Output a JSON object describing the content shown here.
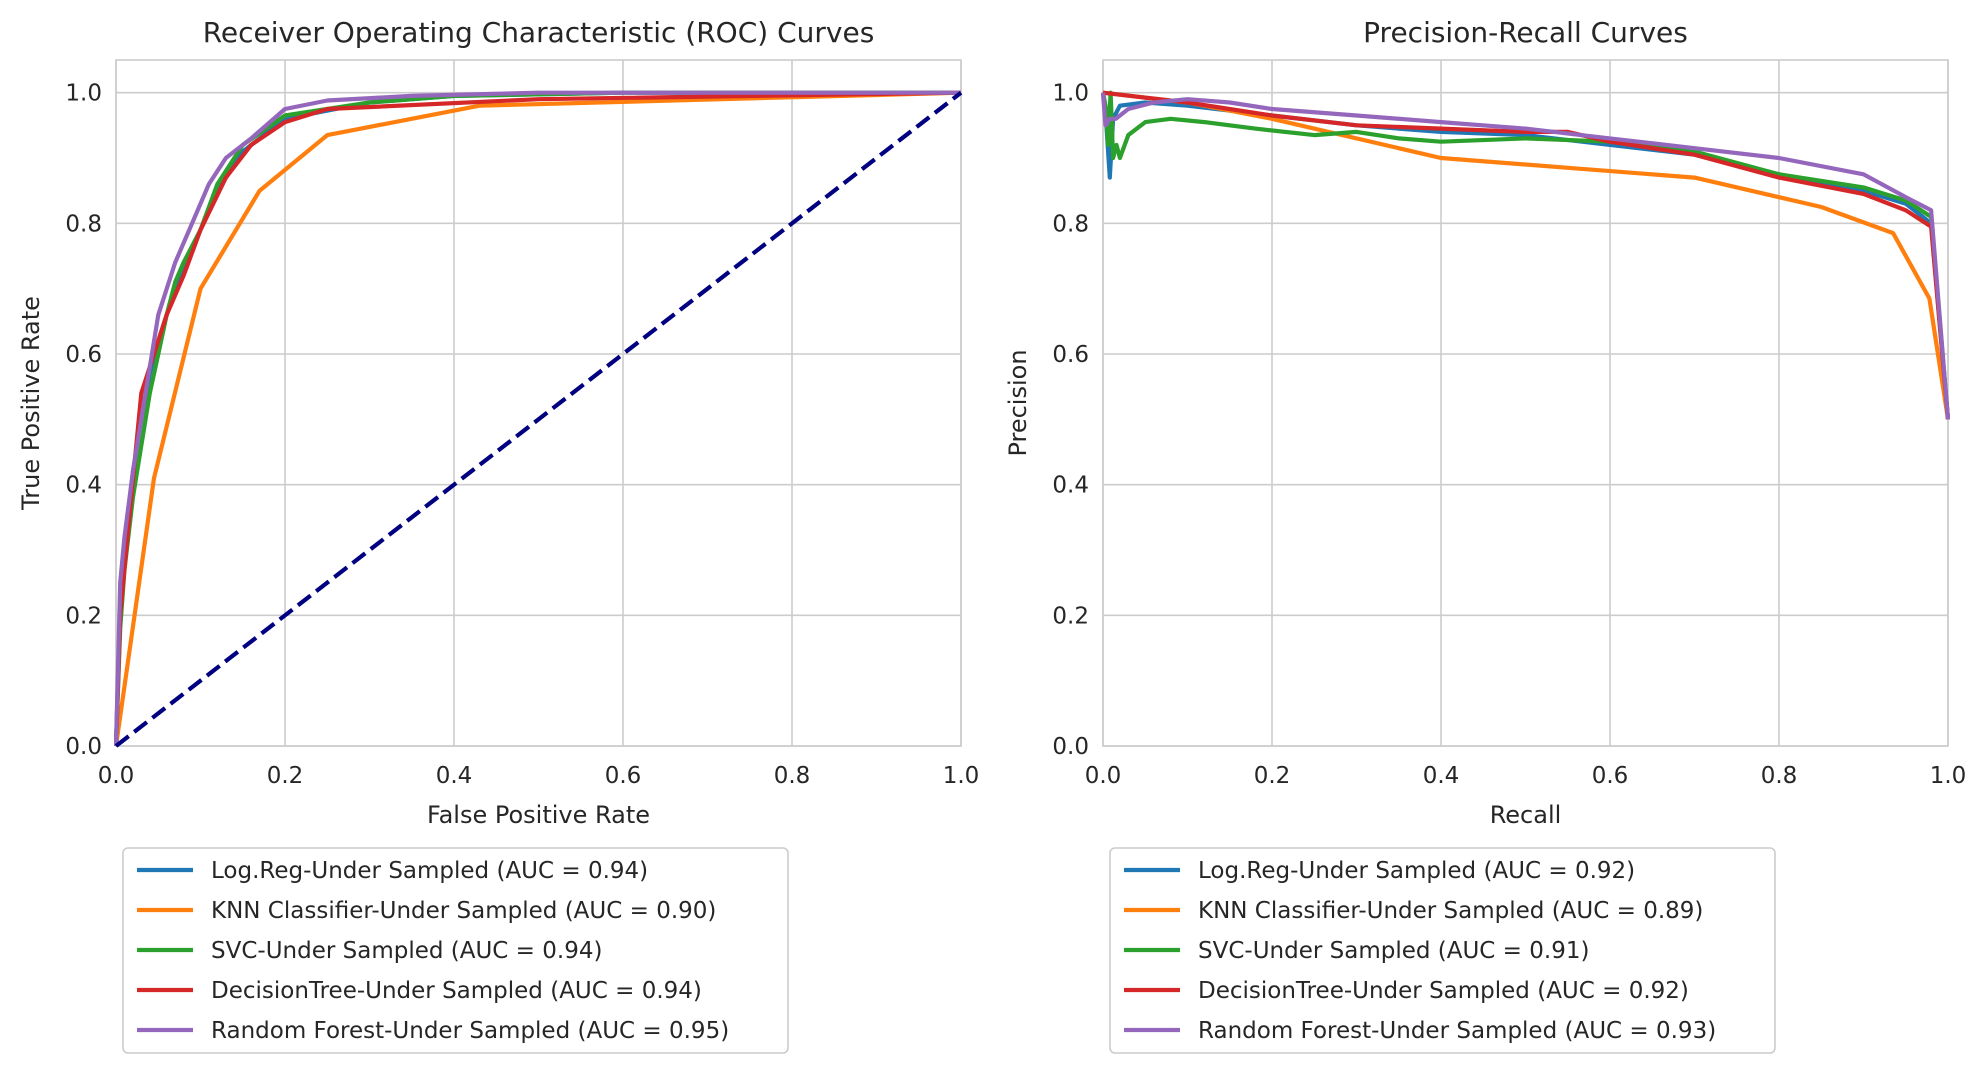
{
  "chart_data": [
    {
      "type": "line",
      "title": "Receiver Operating Characteristic (ROC) Curves",
      "xlabel": "False Positive Rate",
      "ylabel": "True Positive Rate",
      "xlim": [
        0,
        1
      ],
      "ylim": [
        0,
        1.05
      ],
      "xticks": [
        "0.0",
        "0.2",
        "0.4",
        "0.6",
        "0.8",
        "1.0"
      ],
      "yticks": [
        "0.0",
        "0.2",
        "0.4",
        "0.6",
        "0.8",
        "1.0"
      ],
      "grid": true,
      "legend_position": "below",
      "series": [
        {
          "name": "Log.Reg-Under Sampled (AUC = 0.94)",
          "color": "#1f77b4",
          "x": [
            0,
            0.005,
            0.01,
            0.02,
            0.03,
            0.04,
            0.05,
            0.06,
            0.07,
            0.08,
            0.1,
            0.12,
            0.15,
            0.2,
            0.3,
            0.4,
            0.6,
            0.8,
            1.0
          ],
          "y": [
            0,
            0.22,
            0.3,
            0.42,
            0.5,
            0.57,
            0.62,
            0.66,
            0.7,
            0.73,
            0.79,
            0.85,
            0.91,
            0.96,
            0.985,
            0.995,
            1.0,
            1.0,
            1.0
          ]
        },
        {
          "name": "KNN Classifier-Under Sampled (AUC = 0.90)",
          "color": "#ff7f0e",
          "x": [
            0,
            0.045,
            0.1,
            0.17,
            0.25,
            0.43,
            1.0
          ],
          "y": [
            0,
            0.41,
            0.7,
            0.85,
            0.935,
            0.98,
            1.0
          ]
        },
        {
          "name": "SVC-Under Sampled (AUC = 0.94)",
          "color": "#2ca02c",
          "x": [
            0,
            0.005,
            0.01,
            0.02,
            0.03,
            0.04,
            0.05,
            0.06,
            0.07,
            0.08,
            0.1,
            0.12,
            0.15,
            0.2,
            0.3,
            0.4,
            0.6,
            0.8,
            1.0
          ],
          "y": [
            0,
            0.18,
            0.27,
            0.38,
            0.46,
            0.54,
            0.6,
            0.66,
            0.71,
            0.74,
            0.79,
            0.86,
            0.92,
            0.965,
            0.985,
            0.995,
            1.0,
            1.0,
            1.0
          ]
        },
        {
          "name": "DecisionTree-Under Sampled (AUC = 0.94)",
          "color": "#d62728",
          "x": [
            0,
            0.005,
            0.015,
            0.03,
            0.045,
            0.06,
            0.08,
            0.1,
            0.13,
            0.16,
            0.2,
            0.25,
            0.5,
            1.0
          ],
          "y": [
            0,
            0.2,
            0.34,
            0.54,
            0.6,
            0.66,
            0.72,
            0.79,
            0.87,
            0.92,
            0.955,
            0.975,
            0.99,
            1.0
          ]
        },
        {
          "name": "Random Forest-Under Sampled (AUC = 0.95)",
          "color": "#9467bd",
          "x": [
            0,
            0.005,
            0.01,
            0.02,
            0.03,
            0.05,
            0.07,
            0.09,
            0.11,
            0.13,
            0.16,
            0.2,
            0.25,
            0.35,
            0.5,
            1.0
          ],
          "y": [
            0,
            0.25,
            0.32,
            0.42,
            0.5,
            0.66,
            0.74,
            0.8,
            0.86,
            0.9,
            0.93,
            0.975,
            0.988,
            0.995,
            1.0,
            1.0
          ]
        },
        {
          "name": "",
          "color": "#000080",
          "dashed": true,
          "x": [
            0,
            1
          ],
          "y": [
            0,
            1
          ]
        }
      ]
    },
    {
      "type": "line",
      "title": "Precision-Recall Curves",
      "xlabel": "Recall",
      "ylabel": "Precision",
      "xlim": [
        0,
        1
      ],
      "ylim": [
        0,
        1.05
      ],
      "xticks": [
        "0.0",
        "0.2",
        "0.4",
        "0.6",
        "0.8",
        "1.0"
      ],
      "yticks": [
        "0.0",
        "0.2",
        "0.4",
        "0.6",
        "0.8",
        "1.0"
      ],
      "grid": true,
      "legend_position": "below",
      "series": [
        {
          "name": "Log.Reg-Under Sampled (AUC = 0.92)",
          "color": "#1f77b4",
          "x": [
            0,
            0.004,
            0.008,
            0.012,
            0.02,
            0.05,
            0.1,
            0.2,
            0.3,
            0.4,
            0.5,
            0.6,
            0.7,
            0.8,
            0.9,
            0.95,
            0.98,
            1.0
          ],
          "y": [
            1.0,
            0.95,
            0.87,
            0.96,
            0.98,
            0.985,
            0.98,
            0.965,
            0.95,
            0.94,
            0.935,
            0.92,
            0.905,
            0.875,
            0.85,
            0.83,
            0.8,
            0.5
          ]
        },
        {
          "name": "KNN Classifier-Under Sampled (AUC = 0.89)",
          "color": "#ff7f0e",
          "x": [
            0,
            0.1,
            0.2,
            0.4,
            0.55,
            0.7,
            0.85,
            0.935,
            0.978,
            1.0
          ],
          "y": [
            1.0,
            0.985,
            0.96,
            0.9,
            0.885,
            0.87,
            0.825,
            0.785,
            0.685,
            0.5
          ]
        },
        {
          "name": "SVC-Under Sampled (AUC = 0.91)",
          "color": "#2ca02c",
          "x": [
            0,
            0.003,
            0.006,
            0.009,
            0.012,
            0.016,
            0.02,
            0.03,
            0.05,
            0.08,
            0.12,
            0.18,
            0.25,
            0.3,
            0.35,
            0.4,
            0.5,
            0.6,
            0.7,
            0.8,
            0.9,
            0.95,
            0.98,
            1.0
          ],
          "y": [
            1.0,
            0.98,
            0.92,
            1.0,
            0.9,
            0.92,
            0.9,
            0.935,
            0.955,
            0.96,
            0.955,
            0.945,
            0.935,
            0.94,
            0.93,
            0.925,
            0.93,
            0.925,
            0.91,
            0.875,
            0.855,
            0.835,
            0.81,
            0.5
          ]
        },
        {
          "name": "DecisionTree-Under Sampled (AUC = 0.92)",
          "color": "#d62728",
          "x": [
            0,
            0.1,
            0.2,
            0.3,
            0.4,
            0.5,
            0.55,
            0.6,
            0.7,
            0.8,
            0.9,
            0.95,
            0.98,
            1.0
          ],
          "y": [
            1.0,
            0.985,
            0.965,
            0.95,
            0.945,
            0.94,
            0.94,
            0.925,
            0.905,
            0.87,
            0.845,
            0.82,
            0.795,
            0.5
          ]
        },
        {
          "name": "Random Forest-Under Sampled (AUC = 0.93)",
          "color": "#9467bd",
          "x": [
            0,
            0.003,
            0.008,
            0.015,
            0.03,
            0.06,
            0.1,
            0.15,
            0.2,
            0.3,
            0.4,
            0.5,
            0.6,
            0.7,
            0.8,
            0.9,
            0.95,
            0.98,
            1.0
          ],
          "y": [
            1.0,
            0.95,
            0.96,
            0.96,
            0.975,
            0.985,
            0.99,
            0.985,
            0.975,
            0.965,
            0.955,
            0.945,
            0.93,
            0.915,
            0.9,
            0.875,
            0.84,
            0.82,
            0.5
          ]
        }
      ]
    }
  ]
}
